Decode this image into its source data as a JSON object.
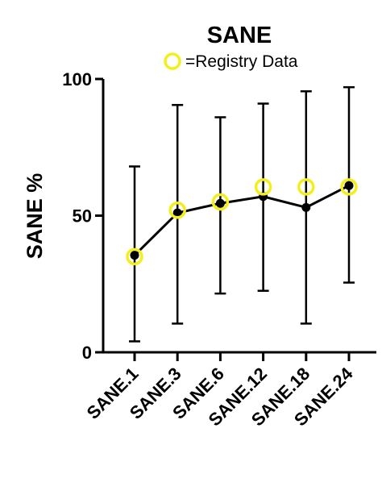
{
  "chart_data": {
    "type": "line",
    "title": "SANE",
    "ylabel": "SANE %",
    "xlabel": "",
    "ylim": [
      0,
      100
    ],
    "yticks": [
      0,
      50,
      100
    ],
    "categories": [
      "SANE.1",
      "SANE.3",
      "SANE.6",
      "SANE.12",
      "SANE.18",
      "SANE.24"
    ],
    "series": [
      {
        "name": "",
        "color": "#000000",
        "values": [
          35.5,
          51,
          54.5,
          57,
          53,
          61
        ],
        "error_low": [
          4,
          10.5,
          21.5,
          22.5,
          10.5,
          25.5
        ],
        "error_high": [
          68,
          90.5,
          86,
          91,
          95.5,
          97
        ]
      },
      {
        "name": "=Registry Data",
        "color": "#f2ef1c",
        "marker": "open-circle",
        "values": [
          35,
          52,
          55,
          60.5,
          60.5,
          60.5
        ]
      }
    ],
    "legend": {
      "placement": "top-center",
      "label": "=Registry Data"
    },
    "grid": false
  }
}
